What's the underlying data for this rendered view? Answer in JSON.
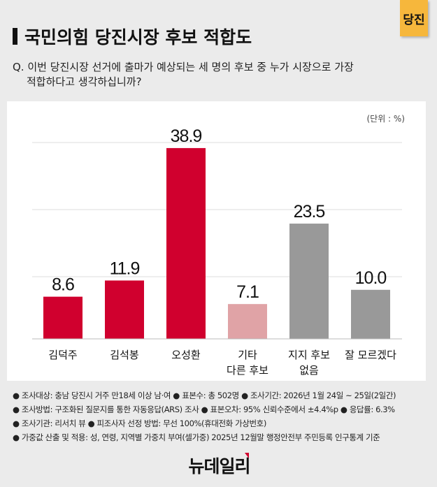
{
  "tag": "당진",
  "title": "국민의힘 당진시장 후보 적합도",
  "question": [
    "Q. 이번 당진시장 선거에 출마가 예상되는 세 명의 후보 중 누가 시장으로 가장",
    "적합하다고 생각하십니까?"
  ],
  "chart_data": {
    "type": "bar",
    "unit_label": "(단위 : %)",
    "categories": [
      [
        "김덕주"
      ],
      [
        "김석봉"
      ],
      [
        "오성환"
      ],
      [
        "기타",
        "다른 후보"
      ],
      [
        "지지 후보",
        "없음"
      ],
      [
        "잘 모르겠다"
      ]
    ],
    "values": [
      8.6,
      11.9,
      38.9,
      7.1,
      23.5,
      10.0
    ],
    "value_labels": [
      "8.6",
      "11.9",
      "38.9",
      "7.1",
      "23.5",
      "10.0"
    ],
    "colors": [
      "#d0002e",
      "#d0002e",
      "#d0002e",
      "#e0a3a6",
      "#999999",
      "#999999"
    ],
    "ylim": [
      0,
      40
    ],
    "grid": true
  },
  "notes": [
    "● 조사대상: 충남 당진시 거주 만18세 이상 남·여 ● 표본수: 총 502명 ● 조사기간: 2026년 1월 24일 ~ 25일(2일간)",
    "● 조사방법: 구조화된 질문지를 통한 자동응답(ARS) 조사 ● 표본오차: 95% 신뢰수준에서 ±4.4%p ● 응답률: 6.3%",
    "● 조사기관: 리서치 뷰 ● 피조사자 선정 방법: 무선 100%(휴대전화 가상번호)",
    "● 가중값 산출 및 적용: 성, 연령, 지역별 가중치 부여(셀가중) 2025년 12월말 행정안전부 주민등록 인구통계 기준"
  ],
  "logo": "뉴데일리"
}
